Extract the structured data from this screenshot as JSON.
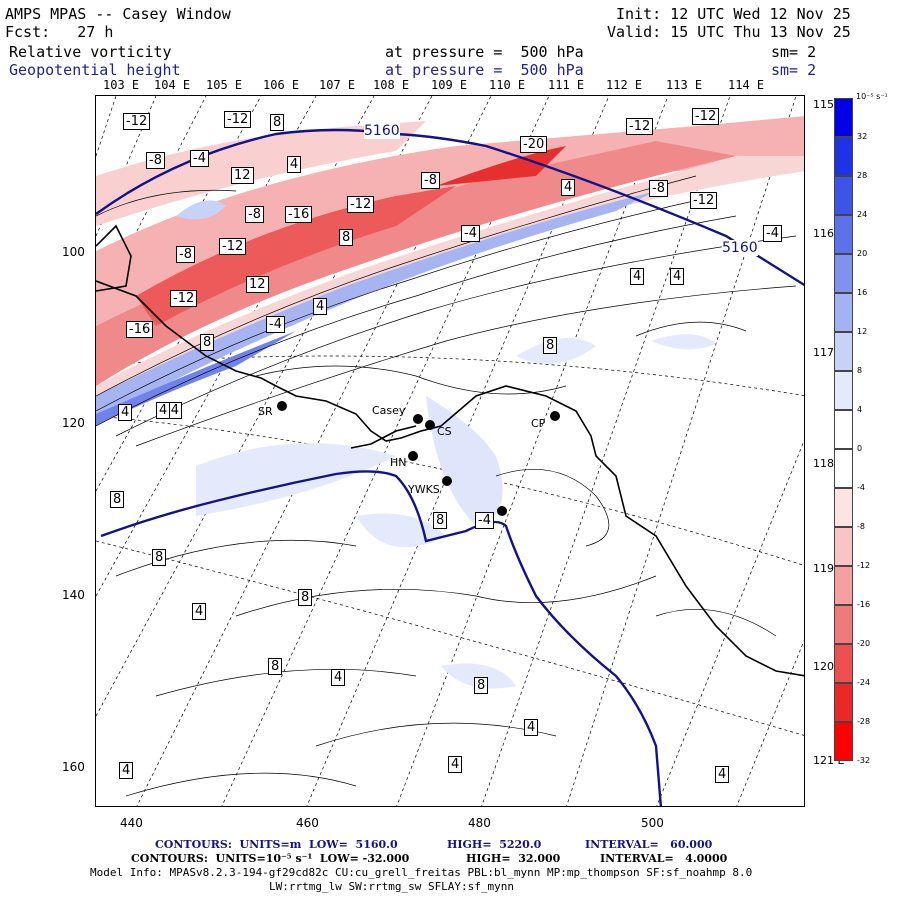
{
  "header": {
    "model": "AMPS MPAS -- Casey Window",
    "init": "Init: 12 UTC Wed 12 Nov 25",
    "fcst": "Fcst:   27 h",
    "valid": "Valid: 15 UTC Thu 13 Nov 25",
    "field1": "Relative vorticity",
    "pressure1": "at pressure =  500 hPa",
    "sm1": "sm= 2",
    "field2": "Geopotential height",
    "pressure2": "at pressure =  500 hPa",
    "sm2": "sm= 2"
  },
  "longitude_labels": [
    "103 E",
    "104 E",
    "105 E",
    "106 E",
    "107 E",
    "108 E",
    "109 E",
    "110 E",
    "111 E",
    "112 E",
    "113 E",
    "114 E"
  ],
  "latitude_labels": [
    "115 E",
    "116 E",
    "117 E",
    "118 E",
    "119 E",
    "120 E",
    "121 E"
  ],
  "y_ticks": [
    "100",
    "120",
    "140",
    "160"
  ],
  "x_ticks": [
    "440",
    "460",
    "480",
    "500"
  ],
  "stations": [
    {
      "code": "SR"
    },
    {
      "code": "Casey"
    },
    {
      "code": "CS"
    },
    {
      "code": "CP"
    },
    {
      "code": "HN"
    },
    {
      "code": "YWKS"
    }
  ],
  "height_labels": [
    "5160",
    "5160"
  ],
  "vort_labels": [
    "-12",
    "-12",
    "8",
    "-12",
    "-12",
    "-8",
    "-4",
    "4",
    "-20",
    "-8",
    "4",
    "-8",
    "12",
    "-8",
    "-16",
    "-12",
    "-12",
    "8",
    "-4",
    "-4",
    "-8",
    "-12",
    "-4",
    "4",
    "4",
    "12",
    "-12",
    "4",
    "-16",
    "-4",
    "8",
    "8",
    "4",
    "4",
    "8",
    "8",
    "8",
    "4",
    "8",
    "4",
    "8",
    "4",
    "8",
    "-4",
    "4",
    "4",
    "4"
  ],
  "colorbar": {
    "unit": "10⁻⁵ s⁻¹",
    "labels": [
      "32",
      "28",
      "24",
      "20",
      "16",
      "12",
      "8",
      "4",
      "0",
      "-4",
      "-8",
      "-12",
      "-16",
      "-20",
      "-24",
      "-28",
      "-32"
    ],
    "colors": [
      "#0000e6",
      "#1e32e6",
      "#3c55e6",
      "#5c72ea",
      "#7e92ee",
      "#a2b2f4",
      "#c6d2f8",
      "#e4eafc",
      "#ffffff",
      "#ffffff",
      "#fce4e4",
      "#f8c4c4",
      "#f4a0a0",
      "#f07a7a",
      "#ec5050",
      "#ea2828",
      "#ff0000"
    ]
  },
  "footer": {
    "line1_a": "CONTOURS:  UNITS=m  LOW=  5160.0",
    "line1_b": "HIGH=  5220.0",
    "line1_c": "INTERVAL=   60.000",
    "line2_a": "CONTOURS:  UNITS=10⁻⁵ s⁻¹  LOW= -32.000",
    "line2_b": "HIGH=  32.000",
    "line2_c": "INTERVAL=   4.0000",
    "line3": "Model Info: MPASv8.2.3-194-gf29cd82c CU:cu_grell_freitas PBL:bl_mynn MP:mp_thompson SF:sf_noahmp 8.0",
    "line4": "LW:rrtmg_lw SW:rrtmg_sw SFLAY:sf_mynn"
  },
  "accent_colors": {
    "height_contour": "#12128a",
    "coast": "#000000"
  }
}
